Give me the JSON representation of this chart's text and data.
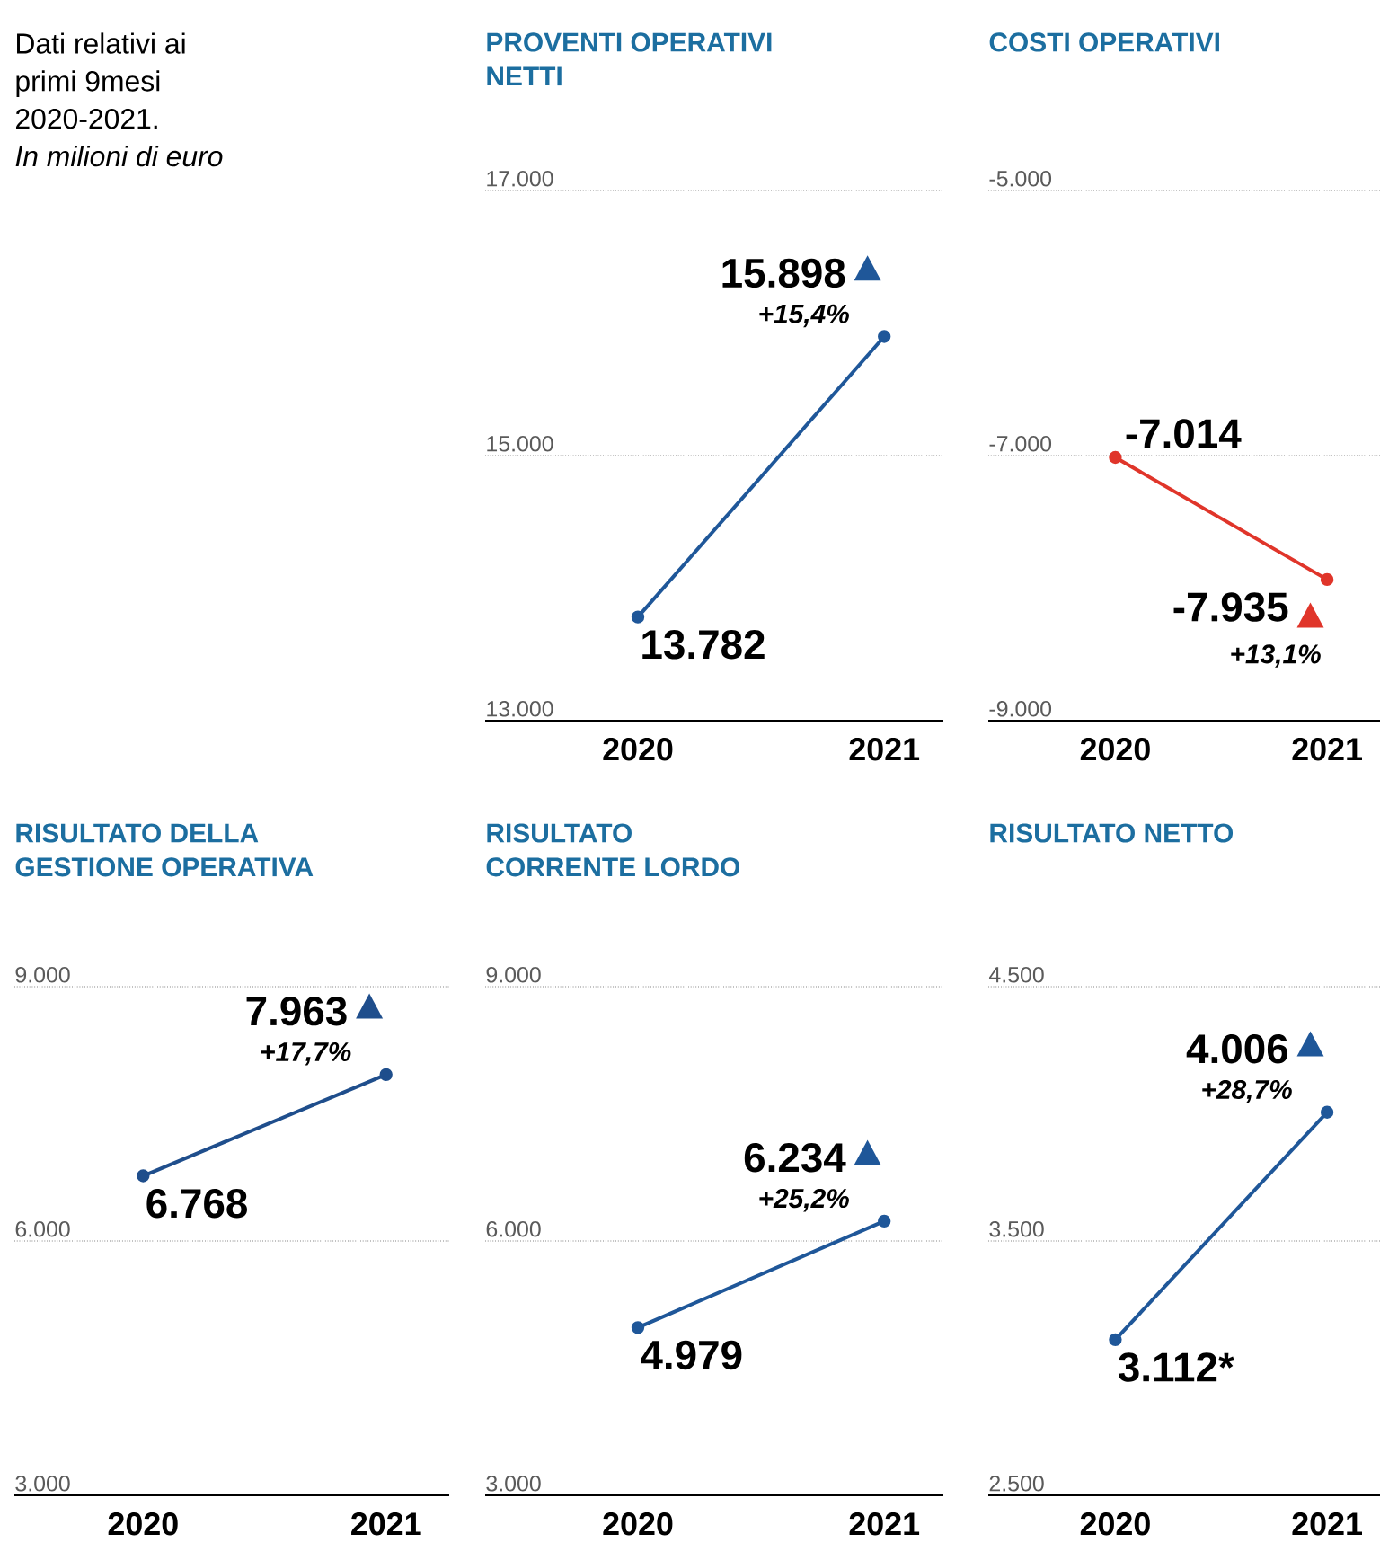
{
  "chart_data": [
    {
      "type": "other",
      "title": "Dati relativi ai primi 9mesi 2020-2021.",
      "subtitle": "In milioni di euro"
    },
    {
      "type": "line",
      "title": "PROVENTI OPERATIVI NETTI",
      "categories": [
        "2020",
        "2021"
      ],
      "series": [
        {
          "color": "#1f5799",
          "values": [
            13782,
            15898
          ],
          "value_labels": [
            "13.782",
            "15.898"
          ]
        }
      ],
      "ylim": [
        13000,
        17000
      ],
      "yticks": [
        {
          "value": 13000,
          "label": "13.000"
        },
        {
          "value": 15000,
          "label": "15.000"
        },
        {
          "value": 17000,
          "label": "17.000"
        }
      ],
      "grid": "y",
      "marker": "circle",
      "annotations": [
        {
          "text": "+15,4%",
          "x": "2021",
          "y": 15898
        }
      ]
    },
    {
      "type": "line",
      "title": "COSTI OPERATIVI",
      "categories": [
        "2020",
        "2021"
      ],
      "series": [
        {
          "color": "#e0352a",
          "values": [
            -7014,
            -7935
          ],
          "value_labels": [
            "-7.014",
            "-7.935"
          ]
        }
      ],
      "ylim": [
        -9000,
        -5000
      ],
      "yticks": [
        {
          "value": -9000,
          "label": "-9.000"
        },
        {
          "value": -7000,
          "label": "-7.000"
        },
        {
          "value": -5000,
          "label": "-5.000"
        }
      ],
      "grid": "y",
      "marker": "circle",
      "annotations": [
        {
          "text": "+13,1%",
          "x": "2021",
          "y": -7935
        }
      ]
    },
    {
      "type": "line",
      "title": "RISULTATO DELLA GESTIONE OPERATIVA",
      "categories": [
        "2020",
        "2021"
      ],
      "series": [
        {
          "color": "#1f4e8c",
          "values": [
            6768,
            7963
          ],
          "value_labels": [
            "6.768",
            "7.963"
          ]
        }
      ],
      "ylim": [
        3000,
        9000
      ],
      "yticks": [
        {
          "value": 3000,
          "label": "3.000"
        },
        {
          "value": 6000,
          "label": "6.000"
        },
        {
          "value": 9000,
          "label": "9.000"
        }
      ],
      "grid": "y",
      "marker": "circle",
      "annotations": [
        {
          "text": "+17,7%",
          "x": "2021",
          "y": 7963
        }
      ]
    },
    {
      "type": "line",
      "title": "RISULTATO CORRENTE LORDO",
      "categories": [
        "2020",
        "2021"
      ],
      "series": [
        {
          "color": "#1f5799",
          "values": [
            4979,
            6234
          ],
          "value_labels": [
            "4.979",
            "6.234"
          ]
        }
      ],
      "ylim": [
        3000,
        9000
      ],
      "yticks": [
        {
          "value": 3000,
          "label": "3.000"
        },
        {
          "value": 6000,
          "label": "6.000"
        },
        {
          "value": 9000,
          "label": "9.000"
        }
      ],
      "grid": "y",
      "marker": "circle",
      "annotations": [
        {
          "text": "+25,2%",
          "x": "2021",
          "y": 6234
        }
      ]
    },
    {
      "type": "line",
      "title": "RISULTATO NETTO",
      "categories": [
        "2020",
        "2021"
      ],
      "series": [
        {
          "color": "#1f5799",
          "values": [
            3112,
            4006
          ],
          "value_labels": [
            "3.112*",
            "4.006"
          ]
        }
      ],
      "ylim": [
        2500,
        4500
      ],
      "yticks": [
        {
          "value": 2500,
          "label": "2.500"
        },
        {
          "value": 3500,
          "label": "3.500"
        },
        {
          "value": 4500,
          "label": "4.500"
        }
      ],
      "grid": "y",
      "marker": "circle",
      "annotations": [
        {
          "text": "+28,7%",
          "x": "2021",
          "y": 4006
        }
      ]
    }
  ]
}
